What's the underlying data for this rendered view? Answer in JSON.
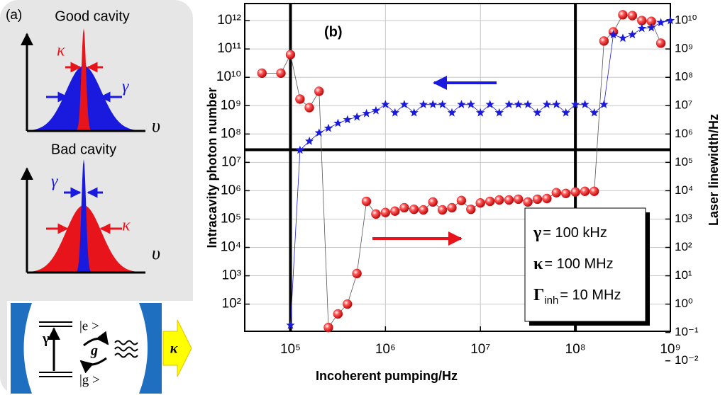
{
  "panel_a": {
    "label": "(a)",
    "good_cavity": {
      "title": "Good cavity",
      "kappa": "κ",
      "gamma": "γ",
      "axis": "υ"
    },
    "bad_cavity": {
      "title": "Bad cavity",
      "gamma": "γ",
      "kappa": "κ",
      "axis": "υ"
    },
    "scheme": {
      "excited": "|e >",
      "ground": "|g >",
      "decay": "γ",
      "coupling": "g",
      "loss": "κ"
    }
  },
  "chart_data": {
    "type": "scatter",
    "x_label": "Incoherent pumping/Hz",
    "y_label": "Intracavity photon number",
    "y2_label": "Laser linewidth/Hz",
    "panel_label": "(b)",
    "params": [
      {
        "symbol": "γ",
        "value": "= 100 kHz"
      },
      {
        "symbol": "κ",
        "value": "= 100 MHz"
      },
      {
        "symbol": "Γ",
        "sub": "inh",
        "value": "= 10 MHz"
      }
    ],
    "x_log": true,
    "y_log": true,
    "y2_log": true,
    "grid": true,
    "xlim": [
      33000,
      1000000000.0
    ],
    "ylim": [
      11,
      4000000000000.0
    ],
    "y2lim": [
      0.11,
      40000000000.0
    ],
    "xticks": [
      {
        "value": 100000.0,
        "label": "10⁵"
      },
      {
        "value": 1000000.0,
        "label": "10⁶"
      },
      {
        "value": 10000000.0,
        "label": "10⁷"
      },
      {
        "value": 100000000.0,
        "label": "10⁸"
      },
      {
        "value": 1000000000.0,
        "label": "10⁹"
      }
    ],
    "yticks": [
      {
        "value": 100.0,
        "label": "10²"
      },
      {
        "value": 1000.0,
        "label": "10³"
      },
      {
        "value": 10000.0,
        "label": "10⁴"
      },
      {
        "value": 100000.0,
        "label": "10⁵"
      },
      {
        "value": 1000000.0,
        "label": "10⁶"
      },
      {
        "value": 10000000.0,
        "label": "10⁷"
      },
      {
        "value": 100000000.0,
        "label": "10⁸"
      },
      {
        "value": 1000000000.0,
        "label": "10⁹"
      },
      {
        "value": 10000000000.0,
        "label": "10¹⁰"
      },
      {
        "value": 100000000000.0,
        "label": "10¹¹"
      },
      {
        "value": 1000000000000.0,
        "label": "10¹²"
      }
    ],
    "y2ticks": [
      {
        "value": 0.01,
        "label": "10⁻²"
      },
      {
        "value": 0.1,
        "label": "10⁻¹"
      },
      {
        "value": 1,
        "label": "10⁰"
      },
      {
        "value": 10,
        "label": "10¹"
      },
      {
        "value": 100,
        "label": "10²"
      },
      {
        "value": 1000,
        "label": "10³"
      },
      {
        "value": 10000.0,
        "label": "10⁴"
      },
      {
        "value": 100000.0,
        "label": "10⁵"
      },
      {
        "value": 1000000.0,
        "label": "10⁶"
      },
      {
        "value": 10000000.0,
        "label": "10⁷"
      },
      {
        "value": 100000000.0,
        "label": "10⁸"
      },
      {
        "value": 1000000000.0,
        "label": "10⁹"
      },
      {
        "value": 10000000000.0,
        "label": "10¹⁰"
      }
    ],
    "reference_lines": {
      "x": [
        100000.0,
        100000000.0
      ],
      "y": 28000000.0
    },
    "x": [
      50100,
      79400,
      100000.0,
      126000.0,
      158000.0,
      200000.0,
      251000.0,
      316000.0,
      398000.0,
      501000.0,
      631000.0,
      794000.0,
      1000000.0,
      1260000.0,
      1580000.0,
      2000000.0,
      2510000.0,
      3160000.0,
      3980000.0,
      5010000.0,
      6310000.0,
      7940000.0,
      10000000.0,
      12600000.0,
      15800000.0,
      20000000.0,
      25100000.0,
      31600000.0,
      39800000.0,
      50100000.0,
      63100000.0,
      79400000.0,
      100000000.0,
      126000000.0,
      158000000.0,
      200000000.0,
      251000000.0,
      316000000.0,
      398000000.0,
      501000000.0,
      631000000.0,
      794000000.0,
      1000000000.0
    ],
    "series": [
      {
        "color": "#e8141b",
        "marker": "circle",
        "axis": "y2",
        "values": [
          140000000.0,
          140000000.0,
          630000000.0,
          17000000.0,
          8500000.0,
          32000000.0,
          0.15,
          0.45,
          1.0,
          12,
          4200,
          1500,
          1700,
          1900,
          2500,
          2200,
          2100,
          4000,
          2100,
          2500,
          4500,
          2200,
          3700,
          4200,
          4700,
          4700,
          5000,
          4000,
          5000,
          5300,
          8500,
          8000,
          9000,
          9500,
          9500,
          1900000000.0,
          4000000000.0,
          16000000000.0,
          15000000000.0,
          10000000000.0,
          9400000000.0,
          1600000000.0,
          null
        ]
      },
      {
        "color": "#1a1adf",
        "marker": "star",
        "values": [
          null,
          null,
          18,
          27000000.0,
          56000000.0,
          110000000.0,
          160000000.0,
          240000000.0,
          320000000.0,
          400000000.0,
          530000000.0,
          670000000.0,
          1100000000.0,
          560000000.0,
          1100000000.0,
          560000000.0,
          1100000000.0,
          1100000000.0,
          1100000000.0,
          560000000.0,
          1100000000.0,
          1100000000.0,
          560000000.0,
          1100000000.0,
          560000000.0,
          1100000000.0,
          1100000000.0,
          1100000000.0,
          560000000.0,
          1100000000.0,
          1100000000.0,
          560000000.0,
          1100000000.0,
          1100000000.0,
          560000000.0,
          1100000000.0,
          320000000000.0,
          240000000000.0,
          320000000000.0,
          530000000000.0,
          560000000000.0,
          850000000000.0,
          1000000000000.0
        ]
      }
    ]
  }
}
